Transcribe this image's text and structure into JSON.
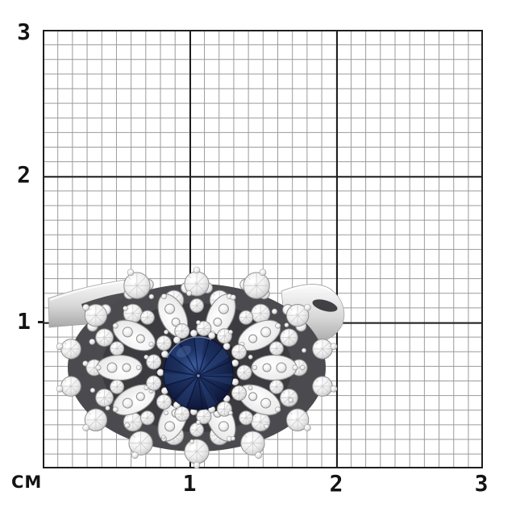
{
  "measurement_overlay": {
    "unit_label": "СМ",
    "x_tick_labels": [
      "1",
      "2",
      "3"
    ],
    "y_tick_labels": [
      "3",
      "2",
      "1"
    ]
  },
  "photo": {
    "subject": "blue-sapphire-diamond-cluster-ring",
    "center_stone": "round-blue-sapphire",
    "accent_stones": "round-and-pear-cut-diamonds",
    "metal": "white-metal-band"
  },
  "colors": {
    "background": "#ffffff",
    "grid_minor": "#999999",
    "grid_major": "#1e1e1e",
    "label_text": "#141414",
    "metal_light": "#fcfcfc",
    "metal_mid": "#d8d8d8",
    "metal_dark": "#a8a8a8",
    "crevice": "#3e3e42",
    "diamond_white": "#ffffff",
    "diamond_edge": "#8f8f8f",
    "sapphire_light": "#3b5a9c",
    "sapphire_mid": "#1d3263",
    "sapphire_dark": "#0a1230"
  }
}
